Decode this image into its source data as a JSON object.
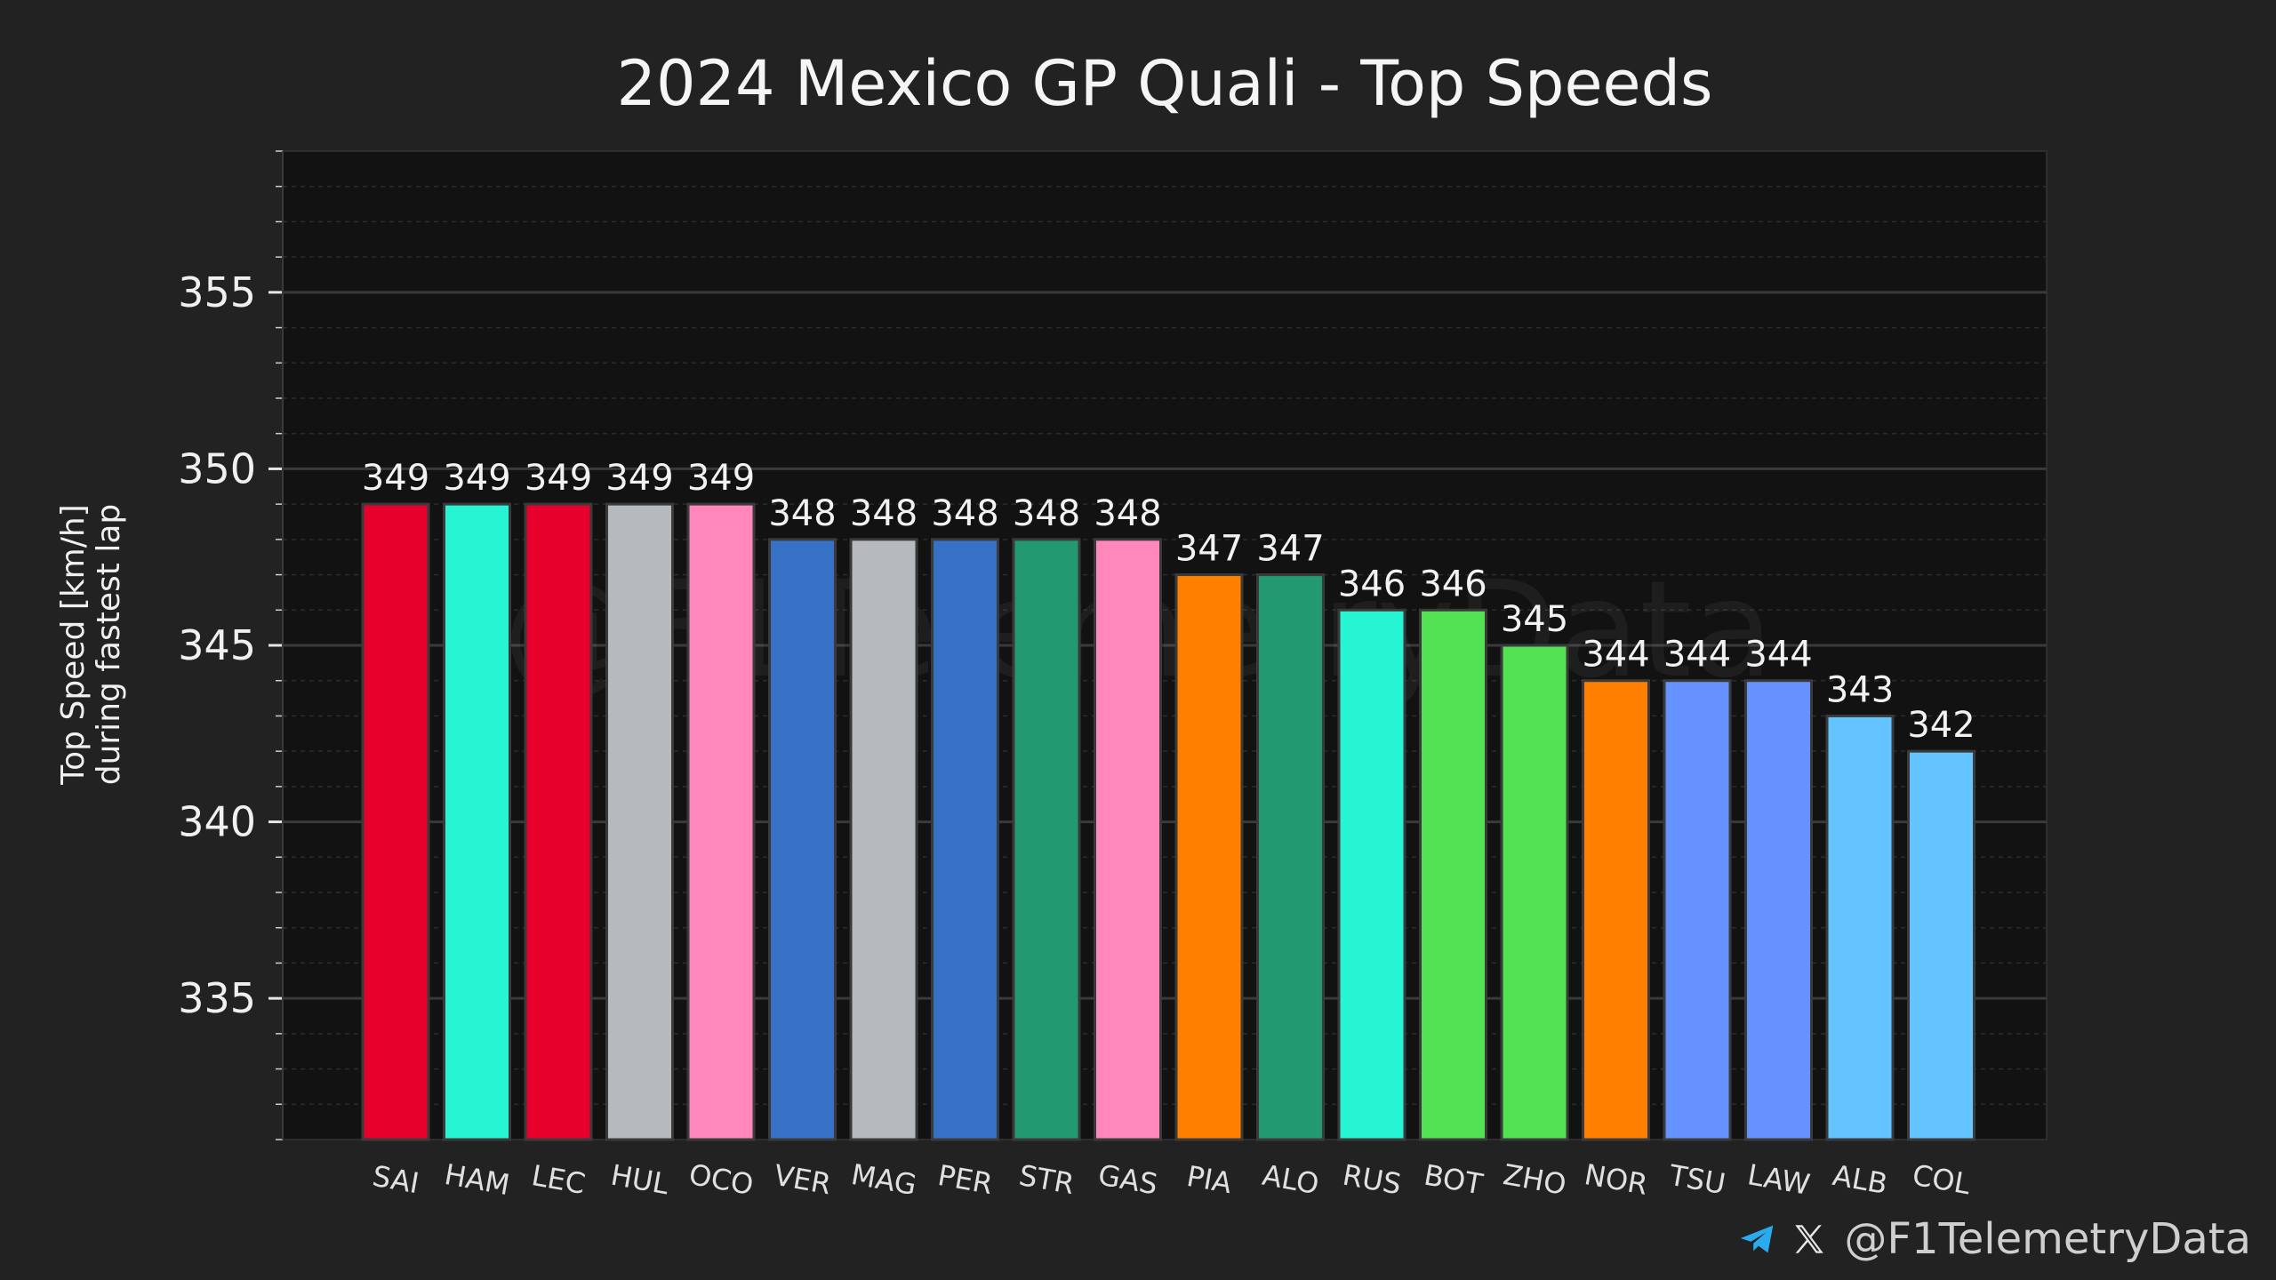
{
  "chart_data": {
    "type": "bar",
    "title": "2024 Mexico GP Quali - Top Speeds",
    "ylabel_lines": [
      "Top Speed [km/h]",
      "during fastest lap"
    ],
    "xlabel": "",
    "ylim": [
      331,
      359
    ],
    "yticks": [
      335,
      340,
      345,
      350,
      355
    ],
    "grid": true,
    "categories": [
      "SAI",
      "HAM",
      "LEC",
      "HUL",
      "OCO",
      "VER",
      "MAG",
      "PER",
      "STR",
      "GAS",
      "PIA",
      "ALO",
      "RUS",
      "BOT",
      "ZHO",
      "NOR",
      "TSU",
      "LAW",
      "ALB",
      "COL"
    ],
    "values": [
      349,
      349,
      349,
      349,
      349,
      348,
      348,
      348,
      348,
      348,
      347,
      347,
      346,
      346,
      345,
      344,
      344,
      344,
      343,
      342
    ],
    "colors": [
      "#E8002D",
      "#27F4D2",
      "#E8002D",
      "#B6BABD",
      "#FF87BC",
      "#3671C6",
      "#B6BABD",
      "#3671C6",
      "#229971",
      "#FF87BC",
      "#FF8000",
      "#229971",
      "#27F4D2",
      "#52E252",
      "#52E252",
      "#FF8000",
      "#6692FF",
      "#6692FF",
      "#64C4FF",
      "#64C4FF"
    ],
    "watermark": "@F1TelemetryData"
  },
  "footer": {
    "handle": "@F1TelemetryData",
    "icons": [
      "telegram-icon",
      "x-icon"
    ]
  }
}
